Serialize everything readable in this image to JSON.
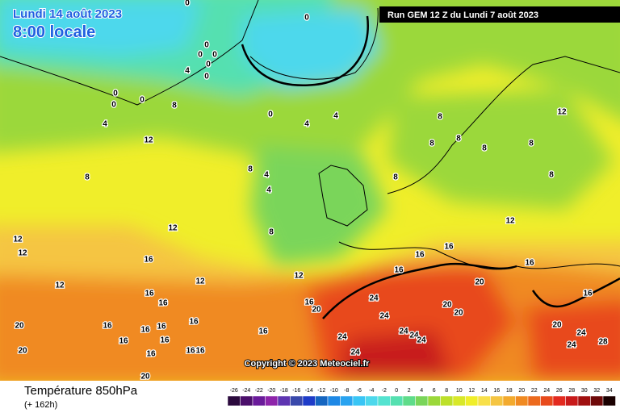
{
  "header": {
    "date": "Lundi 14 août 2023",
    "time": "8:00 locale",
    "run": "Run GEM 12 Z du Lundi 7 août 2023"
  },
  "copyright": "Copyright © 2023 Meteociel.fr",
  "footer": {
    "title": "Température 850hPa",
    "lead": "(+ 162h)"
  },
  "scale": {
    "values": [
      -26,
      -24,
      -22,
      -20,
      -18,
      -16,
      -14,
      -12,
      -10,
      -8,
      -6,
      -4,
      -2,
      0,
      2,
      4,
      6,
      8,
      10,
      12,
      14,
      16,
      18,
      20,
      22,
      24,
      26,
      28,
      30,
      32,
      34
    ],
    "colors": [
      "#2b0a3d",
      "#4b0f6b",
      "#6a1b9a",
      "#8e24aa",
      "#5e35b1",
      "#3949ab",
      "#1e3cc8",
      "#1565c0",
      "#1e88e5",
      "#29a3f0",
      "#39c5f5",
      "#4dd8ec",
      "#54e3d0",
      "#55e0b0",
      "#5fdc8a",
      "#7ad55a",
      "#9bd83a",
      "#bde02a",
      "#d8e829",
      "#f0ee2a",
      "#f8e04a",
      "#f5c542",
      "#f3aa2e",
      "#f08a22",
      "#ec6a1e",
      "#e84a1c",
      "#e32a1f",
      "#c81a1a",
      "#a01010",
      "#6e0808",
      "#1a0000"
    ]
  },
  "isotherm_labels": [
    0,
    0,
    0,
    0,
    0,
    0,
    0,
    0,
    0,
    0,
    0,
    4,
    4,
    4,
    4,
    4,
    4,
    8,
    8,
    8,
    8,
    8,
    8,
    8,
    8,
    8,
    8,
    8,
    12,
    12,
    12,
    12,
    12,
    12,
    12,
    12,
    12,
    16,
    16,
    16,
    16,
    16,
    16,
    16,
    16,
    16,
    16,
    16,
    16,
    16,
    16,
    16,
    16,
    16,
    16,
    16,
    20,
    20,
    20,
    20,
    20,
    20,
    20,
    20,
    24,
    24,
    24,
    24,
    24,
    24,
    24,
    24,
    24,
    28
  ]
}
